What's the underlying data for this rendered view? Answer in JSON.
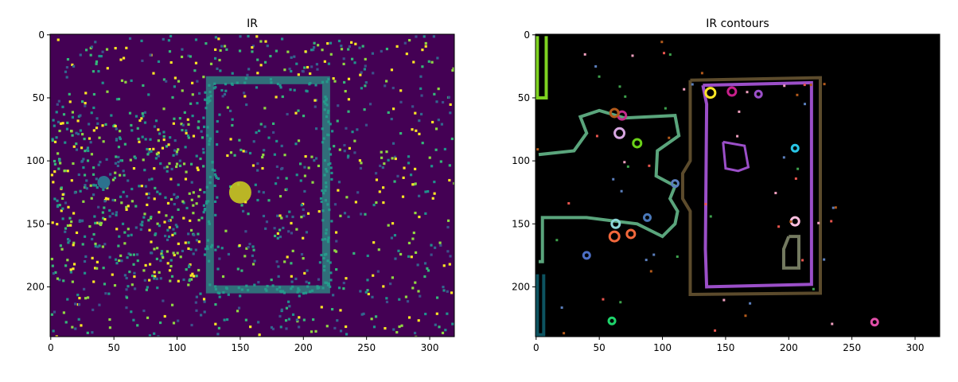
{
  "chart_data": [
    {
      "type": "image",
      "title": "IR",
      "xlim": [
        -0.5,
        319.5
      ],
      "ylim": [
        239.5,
        -0.5
      ],
      "xticks": [
        0,
        50,
        100,
        150,
        200,
        250,
        300
      ],
      "yticks": [
        0,
        50,
        100,
        150,
        200
      ]
    },
    {
      "type": "image",
      "title": "IR contours",
      "xlim": [
        -0.5,
        319.5
      ],
      "ylim": [
        239.5,
        -0.5
      ],
      "xticks": [
        0,
        50,
        100,
        150,
        200,
        250,
        300
      ],
      "yticks": [
        0,
        50,
        100,
        150,
        200
      ]
    }
  ]
}
